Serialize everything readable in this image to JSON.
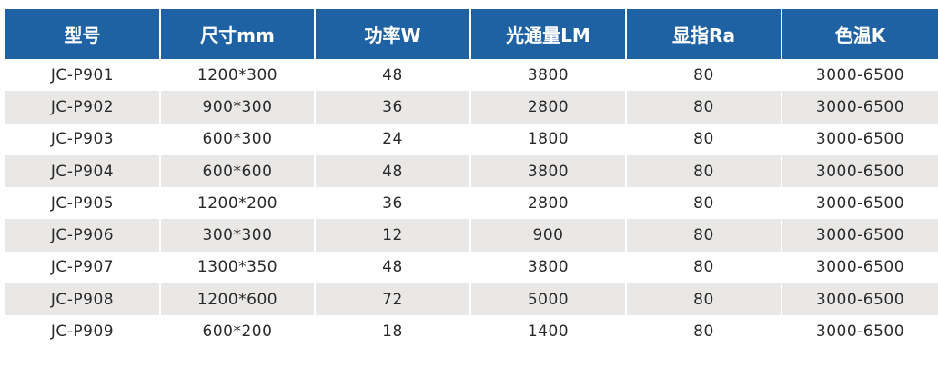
{
  "table": {
    "headers": [
      "型号",
      "尺寸mm",
      "功率W",
      "光通量LM",
      "显指Ra",
      "色温K"
    ],
    "rows": [
      [
        "JC-P901",
        "1200*300",
        "48",
        "3800",
        "80",
        "3000-6500"
      ],
      [
        "JC-P902",
        "900*300",
        "36",
        "2800",
        "80",
        "3000-6500"
      ],
      [
        "JC-P903",
        "600*300",
        "24",
        "1800",
        "80",
        "3000-6500"
      ],
      [
        "JC-P904",
        "600*600",
        "48",
        "3800",
        "80",
        "3000-6500"
      ],
      [
        "JC-P905",
        "1200*200",
        "36",
        "2800",
        "80",
        "3000-6500"
      ],
      [
        "JC-P906",
        "300*300",
        "12",
        "900",
        "80",
        "3000-6500"
      ],
      [
        "JC-P907",
        "1300*350",
        "48",
        "3800",
        "80",
        "3000-6500"
      ],
      [
        "JC-P908",
        "1200*600",
        "72",
        "5000",
        "80",
        "3000-6500"
      ],
      [
        "JC-P909",
        "600*200",
        "18",
        "1400",
        "80",
        "3000-6500"
      ]
    ]
  },
  "colors": {
    "header_background": "#1f62a4",
    "header_text": "#ffffff",
    "stripe_row": "#e9e8e7"
  }
}
